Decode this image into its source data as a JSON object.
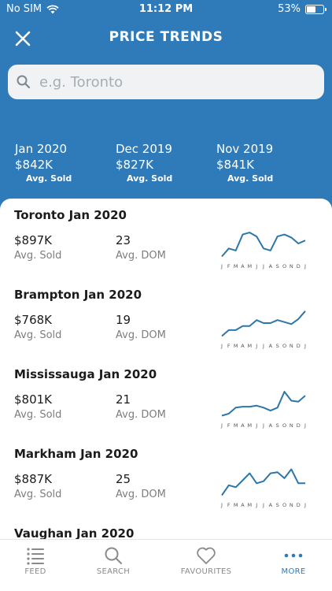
{
  "status": {
    "carrier": "No SIM",
    "time": "11:12 PM",
    "battery": "53%",
    "battery_level": 0.53
  },
  "header": {
    "title": "PRICE TRENDS"
  },
  "search": {
    "placeholder": "e.g. Toronto"
  },
  "summary": [
    {
      "month": "Jan 2020",
      "value": "$842K",
      "label": "Avg. Sold"
    },
    {
      "month": "Dec 2019",
      "value": "$827K",
      "label": "Avg. Sold"
    },
    {
      "month": "Nov 2019",
      "value": "$841K",
      "label": "Avg. Sold"
    }
  ],
  "months_axis": [
    "J",
    "F",
    "M",
    "A",
    "M",
    "J",
    "J",
    "A",
    "S",
    "O",
    "N",
    "D",
    "J"
  ],
  "cities": [
    {
      "name": "Toronto Jan 2020",
      "price": "$897K",
      "price_label": "Avg. Sold",
      "dom": "23",
      "dom_label": "Avg. DOM",
      "trend": [
        2,
        10,
        8,
        24,
        26,
        22,
        10,
        8,
        22,
        24,
        21,
        15,
        18
      ]
    },
    {
      "name": "Brampton Jan 2020",
      "price": "$768K",
      "price_label": "Avg. Sold",
      "dom": "19",
      "dom_label": "Avg. DOM",
      "trend": [
        2,
        8,
        8,
        12,
        12,
        18,
        15,
        15,
        18,
        16,
        14,
        19,
        27
      ]
    },
    {
      "name": "Mississauga Jan 2020",
      "price": "$801K",
      "price_label": "Avg. Sold",
      "dom": "21",
      "dom_label": "Avg. DOM",
      "trend": [
        2,
        4,
        10,
        11,
        11,
        12,
        10,
        7,
        10,
        26,
        17,
        16,
        22
      ]
    },
    {
      "name": "Markham Jan 2020",
      "price": "$887K",
      "price_label": "Avg. Sold",
      "dom": "25",
      "dom_label": "Avg. DOM",
      "trend": [
        2,
        12,
        10,
        17,
        24,
        14,
        16,
        24,
        25,
        19,
        28,
        14,
        14
      ]
    },
    {
      "name": "Vaughan Jan 2020"
    }
  ],
  "tabs": [
    {
      "label": "FEED",
      "icon": "feed-icon"
    },
    {
      "label": "SEARCH",
      "icon": "search-icon"
    },
    {
      "label": "FAVOURITES",
      "icon": "heart-icon"
    },
    {
      "label": "MORE",
      "icon": "more-dots-icon",
      "active": true
    }
  ],
  "colors": {
    "brand": "#2f7ab8",
    "sparkline": "#2c76a8",
    "tab_inactive": "#8a8a8a"
  }
}
